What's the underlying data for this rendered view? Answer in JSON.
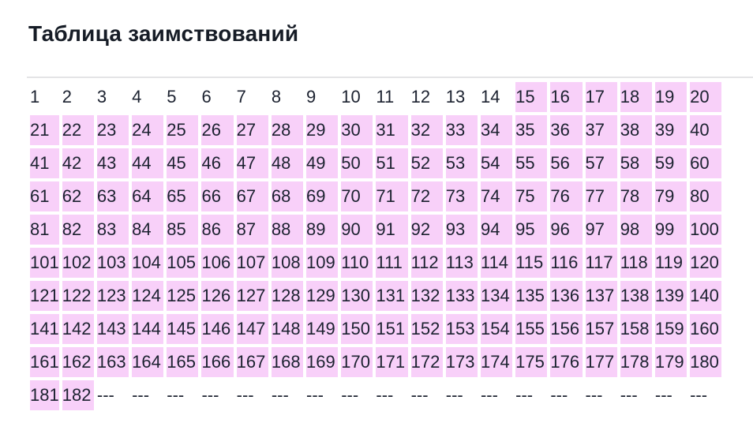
{
  "title": "Таблица заимствований",
  "highlight_color": "#f8d0f9",
  "rows": []
}
